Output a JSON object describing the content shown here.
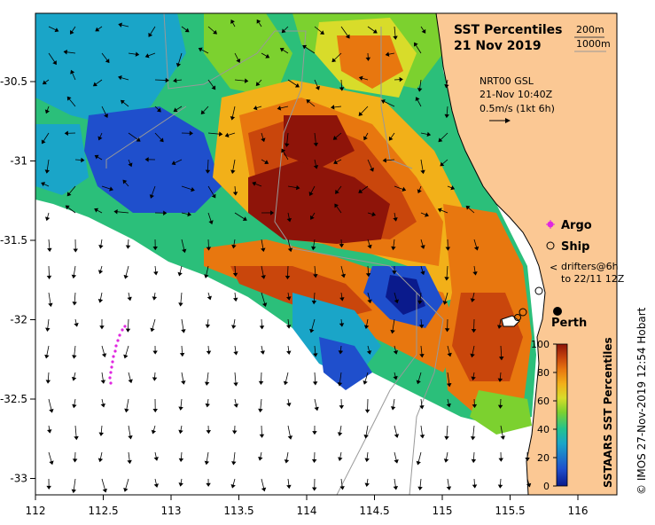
{
  "title_line1": "SST Percentiles",
  "title_line2": "21 Nov 2019",
  "depth_contours": {
    "label_200": "200m",
    "label_1000": "1000m"
  },
  "current_info": {
    "source": "NRT00 GSL",
    "time": "21-Nov 10:40Z",
    "scale": "0.5m/s (1kt 6h)"
  },
  "legend": {
    "argo": "Argo",
    "ship": "Ship",
    "drifters_line1": "drifters@6h",
    "drifters_line2": "to 22/11 12Z"
  },
  "city": "Perth",
  "colorbar": {
    "title": "SSTAARS SST Percentiles",
    "ticks": [
      "0",
      "20",
      "40",
      "60",
      "80",
      "100"
    ],
    "colors": [
      "#0a1a8c",
      "#1f4fcc",
      "#1aa5c8",
      "#21c28f",
      "#7cd12f",
      "#d8dc2a",
      "#f2b019",
      "#e8770f",
      "#c9460c",
      "#8e1409"
    ]
  },
  "x_axis": {
    "ticks": [
      "112",
      "112.5",
      "113",
      "113.5",
      "114",
      "114.5",
      "115",
      "115.5",
      "116"
    ]
  },
  "y_axis": {
    "ticks": [
      "-30.5",
      "-31",
      "-31.5",
      "-32",
      "-32.5",
      "-33"
    ]
  },
  "credit": "© IMOS 27-Nov-2019 12:54 Hobart",
  "colors": {
    "land": "#fbc894",
    "argo": "#e026e0"
  }
}
